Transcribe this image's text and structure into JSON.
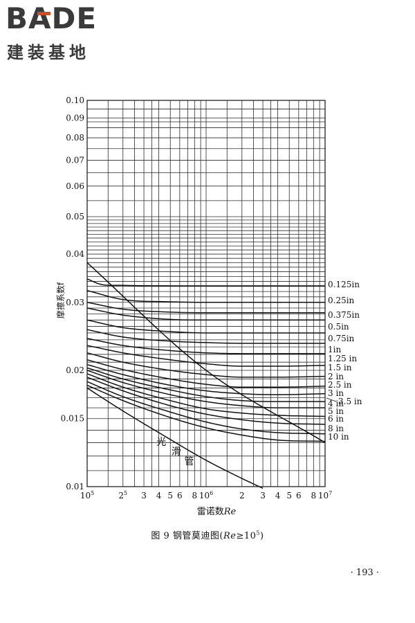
{
  "logo": {
    "brand": "BADE",
    "subtitle": "建装基地"
  },
  "caption": {
    "prefix": "图 9   钢管莫迪图(",
    "re": "Re",
    "ge": "≥10",
    "exp": "5",
    "suffix": ")"
  },
  "page_number": "· 193 ·",
  "colors": {
    "ink": "#111111",
    "grid": "#2a2a2a",
    "logo_gray": "#3a3a3a",
    "logo_accent": "#d9481f"
  },
  "chart_data": {
    "type": "line",
    "title": "",
    "xlabel": "雷诺数Re",
    "ylabel": "摩擦系数f",
    "xscale": "log",
    "yscale": "log",
    "xlim": [
      100000,
      10000000
    ],
    "ylim": [
      0.01,
      0.1
    ],
    "grid": true,
    "x_ticks": [
      {
        "v": 100000,
        "base": "10",
        "exp": "5"
      },
      {
        "v": 200000,
        "base": "2",
        "exp": "5"
      },
      {
        "v": 300000,
        "base": "3",
        "exp": ""
      },
      {
        "v": 400000,
        "base": "4",
        "exp": ""
      },
      {
        "v": 500000,
        "base": "5",
        "exp": ""
      },
      {
        "v": 600000,
        "base": "6",
        "exp": ""
      },
      {
        "v": 800000,
        "base": "8",
        "exp": ""
      },
      {
        "v": 1000000,
        "base": "10",
        "exp": "6"
      },
      {
        "v": 2000000,
        "base": "2",
        "exp": ""
      },
      {
        "v": 3000000,
        "base": "3",
        "exp": ""
      },
      {
        "v": 4000000,
        "base": "4",
        "exp": ""
      },
      {
        "v": 5000000,
        "base": "5",
        "exp": ""
      },
      {
        "v": 6000000,
        "base": "6",
        "exp": ""
      },
      {
        "v": 8000000,
        "base": "8",
        "exp": ""
      },
      {
        "v": 10000000,
        "base": "10",
        "exp": "7"
      }
    ],
    "y_ticks": [
      {
        "v": 0.1,
        "label": "0.10"
      },
      {
        "v": 0.09,
        "label": "0.09"
      },
      {
        "v": 0.08,
        "label": "0.08"
      },
      {
        "v": 0.07,
        "label": "0.07"
      },
      {
        "v": 0.06,
        "label": "0.06"
      },
      {
        "v": 0.05,
        "label": "0.05"
      },
      {
        "v": 0.04,
        "label": "0.04"
      },
      {
        "v": 0.03,
        "label": "0.03"
      },
      {
        "v": 0.02,
        "label": "0.02"
      },
      {
        "v": 0.015,
        "label": "0.015"
      },
      {
        "v": 0.01,
        "label": "0.01"
      }
    ],
    "series": [
      {
        "name": "0.125in",
        "x": [
          100000,
          130000,
          200000,
          500000,
          10000000
        ],
        "y": [
          0.0345,
          0.0334,
          0.0332,
          0.0331,
          0.0331
        ]
      },
      {
        "name": "0.25in",
        "x": [
          100000,
          200000,
          500000,
          1000000,
          10000000
        ],
        "y": [
          0.0322,
          0.0305,
          0.0301,
          0.03,
          0.03
        ]
      },
      {
        "name": "0.375in",
        "x": [
          100000,
          200000,
          500000,
          1000000,
          10000000
        ],
        "y": [
          0.03,
          0.0288,
          0.0283,
          0.0282,
          0.0282
        ]
      },
      {
        "name": "0.5in",
        "x": [
          100000,
          200000,
          500000,
          1000000,
          10000000
        ],
        "y": [
          0.029,
          0.0278,
          0.0271,
          0.027,
          0.027
        ]
      },
      {
        "name": "0.75in",
        "x": [
          100000,
          200000,
          500000,
          1000000,
          10000000
        ],
        "y": [
          0.027,
          0.0258,
          0.0252,
          0.025,
          0.025
        ]
      },
      {
        "name": "1in",
        "x": [
          100000,
          200000,
          500000,
          1000000,
          2000000,
          10000000
        ],
        "y": [
          0.0255,
          0.0244,
          0.0238,
          0.0236,
          0.0235,
          0.0235
        ]
      },
      {
        "name": "1.25 in",
        "x": [
          100000,
          200000,
          500000,
          1000000,
          2000000,
          10000000
        ],
        "y": [
          0.0242,
          0.0232,
          0.0225,
          0.0222,
          0.0221,
          0.0221
        ]
      },
      {
        "name": "1.5 in",
        "x": [
          100000,
          200000,
          500000,
          1000000,
          2000000,
          4000000,
          10000000
        ],
        "y": [
          0.0232,
          0.0222,
          0.0213,
          0.0208,
          0.0205,
          0.0205,
          0.0206
        ]
      },
      {
        "name": "2 in",
        "x": [
          100000,
          200000,
          500000,
          1000000,
          2000000,
          4000000,
          10000000
        ],
        "y": [
          0.0222,
          0.021,
          0.02,
          0.0195,
          0.0192,
          0.0192,
          0.0193
        ]
      },
      {
        "name": "2.5 in",
        "x": [
          100000,
          200000,
          500000,
          1000000,
          2000000,
          4000000,
          10000000
        ],
        "y": [
          0.0213,
          0.0201,
          0.019,
          0.0184,
          0.0181,
          0.0181,
          0.0182
        ]
      },
      {
        "name": "3 in",
        "x": [
          100000,
          200000,
          500000,
          1000000,
          2000000,
          4000000,
          10000000
        ],
        "y": [
          0.0207,
          0.0195,
          0.0183,
          0.0177,
          0.0174,
          0.0173,
          0.0174
        ]
      },
      {
        "name": "3.5 in",
        "x": [
          100000,
          200000,
          500000,
          1000000,
          2000000,
          4000000,
          10000000
        ],
        "y": [
          0.0203,
          0.019,
          0.0178,
          0.0171,
          0.0167,
          0.0166,
          0.0166
        ]
      },
      {
        "name": "4 in",
        "x": [
          100000,
          200000,
          500000,
          1000000,
          2000000,
          4000000,
          10000000
        ],
        "y": [
          0.02,
          0.0186,
          0.0173,
          0.0166,
          0.0162,
          0.016,
          0.016
        ]
      },
      {
        "name": "5 in",
        "x": [
          100000,
          200000,
          500000,
          1000000,
          2000000,
          4000000,
          10000000
        ],
        "y": [
          0.0196,
          0.0181,
          0.0167,
          0.0159,
          0.0155,
          0.0153,
          0.0152
        ]
      },
      {
        "name": "6 in",
        "x": [
          100000,
          200000,
          500000,
          1000000,
          2000000,
          4000000,
          10000000
        ],
        "y": [
          0.0192,
          0.0177,
          0.0162,
          0.0154,
          0.0149,
          0.0146,
          0.0145
        ]
      },
      {
        "name": "8 in",
        "x": [
          100000,
          200000,
          500000,
          1000000,
          2000000,
          4000000,
          10000000
        ],
        "y": [
          0.0187,
          0.0171,
          0.0156,
          0.0147,
          0.0141,
          0.0138,
          0.0137
        ]
      },
      {
        "name": "10 in",
        "x": [
          100000,
          200000,
          500000,
          1000000,
          2000000,
          4000000,
          10000000
        ],
        "y": [
          0.0183,
          0.0167,
          0.0151,
          0.0142,
          0.0136,
          0.0132,
          0.0131
        ]
      },
      {
        "name": "光滑管",
        "x": [
          100000,
          200000,
          400000,
          1000000,
          2000000,
          3000000
        ],
        "y": [
          0.018,
          0.0157,
          0.0138,
          0.0117,
          0.0105,
          0.0099
        ]
      },
      {
        "name": "",
        "x": [
          100000,
          1000000,
          10000000
        ],
        "y": [
          0.038,
          0.02,
          0.013
        ]
      }
    ],
    "annotations": [
      {
        "text": "光",
        "x": 420000,
        "y": 0.0128
      },
      {
        "text": "滑",
        "x": 560000,
        "y": 0.0121
      },
      {
        "text": "管",
        "x": 720000,
        "y": 0.0114
      }
    ]
  }
}
